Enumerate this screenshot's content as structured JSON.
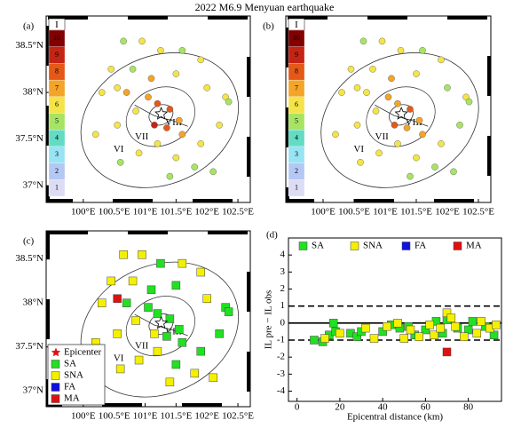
{
  "title": "2022 M6.9 Menyuan earthquake",
  "chart_data": [
    {
      "type": "intensity",
      "panel": "(a)",
      "epicenter": [
        101.26,
        37.77
      ],
      "contour_labels": [
        "VI",
        "VII",
        "VIII"
      ],
      "xlim": [
        99.4,
        102.7
      ],
      "ylim": [
        36.82,
        38.82
      ],
      "xticks": [
        {
          "value": 100,
          "label": "100°E"
        },
        {
          "value": 100.5,
          "label": "100.5°E"
        },
        {
          "value": 101,
          "label": "101°E"
        },
        {
          "value": 101.5,
          "label": "101.5°E"
        },
        {
          "value": 102,
          "label": "102°E"
        },
        {
          "value": 102.5,
          "label": "102.5°E"
        }
      ],
      "yticks": [
        {
          "value": 37,
          "label": "37°N"
        },
        {
          "value": 37.5,
          "label": "37.5°N"
        },
        {
          "value": 38,
          "label": "38°N"
        },
        {
          "value": 38.5,
          "label": "38.5°N"
        }
      ],
      "colorbar": {
        "label": "I",
        "ticks": [
          1,
          2,
          3,
          4,
          5,
          6,
          7,
          8,
          9,
          10
        ],
        "colors": [
          "#dcdcf4",
          "#b4c8f4",
          "#98e4f4",
          "#64dcc4",
          "#a8e464",
          "#f4e448",
          "#f4a428",
          "#e45818",
          "#c42414",
          "#840000"
        ]
      },
      "x": [
        100.65,
        100.95,
        101.25,
        101.6,
        101.9,
        100.45,
        100.8,
        101.1,
        101.5,
        102.0,
        102.3,
        100.7,
        101.05,
        101.2,
        101.4,
        100.85,
        101.55,
        101.15,
        101.35,
        101.6,
        100.55,
        100.3,
        102.2,
        101.9,
        101.2,
        100.9,
        101.5,
        101.8,
        102.1,
        101.4,
        100.6,
        102.35,
        100.2,
        100.55
      ],
      "y": [
        38.55,
        38.55,
        38.45,
        38.45,
        38.35,
        38.25,
        38.25,
        38.15,
        38.2,
        38.05,
        37.95,
        38.0,
        37.95,
        37.88,
        37.82,
        37.8,
        37.7,
        37.65,
        37.62,
        37.55,
        37.65,
        38.0,
        37.65,
        37.45,
        37.45,
        37.35,
        37.3,
        37.2,
        37.15,
        37.1,
        37.25,
        37.9,
        37.55,
        38.05
      ],
      "values": [
        5,
        6,
        6,
        5,
        6,
        6,
        5,
        7,
        6,
        6,
        6,
        7,
        7,
        8,
        8,
        6,
        7,
        9,
        8,
        7,
        6,
        6,
        6,
        6,
        6,
        6,
        6,
        5,
        5,
        5,
        5,
        5,
        6,
        6
      ]
    },
    {
      "type": "intensity",
      "panel": "(b)",
      "epicenter": [
        101.26,
        37.77
      ],
      "contour_labels": [
        "VI",
        "VII",
        "VIII"
      ],
      "xlim": [
        99.4,
        102.7
      ],
      "ylim": [
        36.82,
        38.82
      ],
      "xticks": [
        {
          "value": 100,
          "label": "100°E"
        },
        {
          "value": 100.5,
          "label": "100.5°E"
        },
        {
          "value": 101,
          "label": "101°E"
        },
        {
          "value": 101.5,
          "label": "101.5°E"
        },
        {
          "value": 102,
          "label": "102°E"
        },
        {
          "value": 102.5,
          "label": "102.5°E"
        }
      ],
      "colorbar": {
        "label": "I",
        "ticks": [
          1,
          2,
          3,
          4,
          5,
          6,
          7,
          8,
          9,
          10
        ],
        "colors": [
          "#dcdcf4",
          "#b4c8f4",
          "#98e4f4",
          "#64dcc4",
          "#a8e464",
          "#f4e448",
          "#f4a428",
          "#e45818",
          "#c42414",
          "#840000"
        ]
      },
      "x": [
        100.65,
        100.95,
        101.25,
        101.6,
        101.9,
        100.45,
        100.8,
        101.1,
        101.5,
        102.0,
        102.3,
        100.7,
        101.05,
        101.2,
        101.4,
        100.85,
        101.55,
        101.15,
        101.35,
        101.6,
        100.55,
        100.3,
        102.2,
        101.9,
        101.2,
        100.9,
        101.5,
        101.8,
        102.1,
        101.4,
        100.6,
        102.35,
        100.2,
        100.55
      ],
      "y": [
        38.55,
        38.55,
        38.45,
        38.45,
        38.35,
        38.25,
        38.25,
        38.15,
        38.2,
        38.05,
        37.95,
        38.0,
        37.95,
        37.88,
        37.82,
        37.8,
        37.7,
        37.65,
        37.62,
        37.55,
        37.65,
        38.0,
        37.65,
        37.45,
        37.45,
        37.35,
        37.3,
        37.2,
        37.15,
        37.1,
        37.25,
        37.9,
        37.55,
        38.05
      ],
      "values": [
        5,
        6,
        6,
        5,
        6,
        6,
        6,
        7,
        6,
        5,
        6,
        6,
        7,
        7,
        8,
        6,
        7,
        8,
        7,
        7,
        6,
        6,
        5,
        6,
        6,
        6,
        6,
        5,
        5,
        5,
        6,
        5,
        6,
        6
      ]
    },
    {
      "type": "classmap",
      "panel": "(c)",
      "epicenter": [
        101.26,
        37.77
      ],
      "epicenter_label": "Epicenter",
      "contour_labels": [
        "VI",
        "VII",
        "VIII"
      ],
      "xlim": [
        99.4,
        102.7
      ],
      "ylim": [
        36.82,
        38.82
      ],
      "xticks": [
        {
          "value": 100,
          "label": "100°E"
        },
        {
          "value": 100.5,
          "label": "100.5°E"
        },
        {
          "value": 101,
          "label": "101°E"
        },
        {
          "value": 101.5,
          "label": "101.5°E"
        },
        {
          "value": 102,
          "label": "102°E"
        },
        {
          "value": 102.5,
          "label": "102.5°E"
        }
      ],
      "yticks": [
        {
          "value": 37,
          "label": "37°N"
        },
        {
          "value": 37.5,
          "label": "37.5°N"
        },
        {
          "value": 38,
          "label": "38°N"
        },
        {
          "value": 38.5,
          "label": "38.5°N"
        }
      ],
      "series": [
        {
          "name": "SA",
          "color": "#22e022",
          "x": [
            101.25,
            101.1,
            101.5,
            102.3,
            100.7,
            101.05,
            101.2,
            101.4,
            101.55,
            101.35,
            101.6,
            102.2,
            101.9,
            101.5,
            102.35
          ],
          "values": [
            38.45,
            38.15,
            38.2,
            37.95,
            38.0,
            37.95,
            37.88,
            37.82,
            37.7,
            37.62,
            37.55,
            37.65,
            37.45,
            37.3,
            37.9
          ]
        },
        {
          "name": "SNA",
          "color": "#f4f000",
          "x": [
            100.65,
            100.95,
            101.6,
            101.9,
            100.45,
            100.8,
            102.0,
            100.85,
            101.15,
            100.55,
            100.3,
            101.2,
            100.9,
            101.8,
            102.1,
            101.4,
            100.6,
            100.2
          ],
          "values": [
            38.55,
            38.55,
            38.45,
            38.35,
            38.25,
            38.25,
            38.05,
            37.8,
            37.65,
            37.65,
            38.0,
            37.45,
            37.35,
            37.2,
            37.15,
            37.1,
            37.25,
            37.55
          ]
        },
        {
          "name": "FA",
          "color": "#1010e0",
          "x": [],
          "values": []
        },
        {
          "name": "MA",
          "color": "#e01010",
          "x": [
            100.55
          ],
          "values": [
            38.05
          ]
        }
      ]
    },
    {
      "type": "scatter",
      "panel": "(d)",
      "xlabel": "Epicentral distance (km)",
      "ylabel": "IL pre − IL obs",
      "xlim": [
        -4,
        95.5
      ],
      "ylim": [
        -4.6,
        5
      ],
      "xticks": [
        0,
        20,
        40,
        60,
        80
      ],
      "yticks": [
        -4,
        -3,
        -2,
        -1,
        0,
        1,
        2,
        3,
        4
      ],
      "hlines": [
        {
          "value": 0,
          "dashed": false
        },
        {
          "value": 1,
          "dashed": true
        },
        {
          "value": -1,
          "dashed": true
        }
      ],
      "series": [
        {
          "name": "SA",
          "color": "#22e022",
          "x": [
            8,
            12,
            15,
            17,
            18,
            25,
            28,
            30,
            40,
            44,
            48,
            52,
            55,
            60,
            65,
            68,
            70,
            75,
            80,
            82,
            88,
            92
          ],
          "values": [
            -1.0,
            -1.1,
            -0.7,
            0,
            -0.5,
            -0.6,
            -0.8,
            -0.5,
            -0.5,
            -0.1,
            -0.3,
            -0.2,
            -0.7,
            -0.4,
            0.1,
            -0.6,
            0.2,
            -0.3,
            -0.4,
            0.1,
            -0.2,
            -0.7
          ]
        },
        {
          "name": "SNA",
          "color": "#f4f000",
          "x": [
            13,
            20,
            32,
            36,
            42,
            47,
            50,
            53,
            57,
            62,
            64,
            67,
            70,
            72,
            74,
            78,
            84,
            86,
            90,
            93
          ],
          "values": [
            -0.9,
            -0.6,
            -0.3,
            -0.9,
            -0.2,
            0,
            -0.9,
            -0.4,
            -0.8,
            -0.1,
            -0.7,
            -0.3,
            0.6,
            0.3,
            -0.2,
            -0.8,
            -0.6,
            0.1,
            -0.3,
            -0.1
          ]
        },
        {
          "name": "FA",
          "color": "#1010e0",
          "x": [],
          "values": []
        },
        {
          "name": "MA",
          "color": "#e01010",
          "x": [
            70
          ],
          "values": [
            -1.7
          ]
        }
      ]
    }
  ]
}
